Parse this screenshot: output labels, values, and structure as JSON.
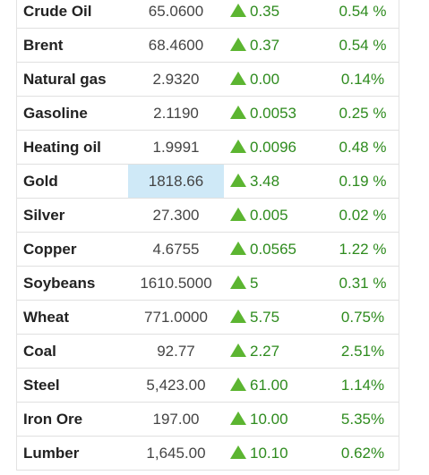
{
  "commodities": [
    {
      "name": "Crude Oil",
      "price": "65.0600",
      "change": "0.35",
      "percent": "0.54 %"
    },
    {
      "name": "Brent",
      "price": "68.4600",
      "change": "0.37",
      "percent": "0.54 %"
    },
    {
      "name": "Natural gas",
      "price": "2.9320",
      "change": "0.00",
      "percent": "0.14%"
    },
    {
      "name": "Gasoline",
      "price": "2.1190",
      "change": "0.0053",
      "percent": "0.25 %"
    },
    {
      "name": "Heating oil",
      "price": "1.9991",
      "change": "0.0096",
      "percent": "0.48 %"
    },
    {
      "name": "Gold",
      "price": "1818.66",
      "change": "3.48",
      "percent": "0.19 %",
      "highlighted": true
    },
    {
      "name": "Silver",
      "price": "27.300",
      "change": "0.005",
      "percent": "0.02 %"
    },
    {
      "name": "Copper",
      "price": "4.6755",
      "change": "0.0565",
      "percent": "1.22 %"
    },
    {
      "name": "Soybeans",
      "price": "1610.5000",
      "change": "5",
      "percent": "0.31 %"
    },
    {
      "name": "Wheat",
      "price": "771.0000",
      "change": "5.75",
      "percent": "0.75%"
    },
    {
      "name": "Coal",
      "price": "92.77",
      "change": "2.27",
      "percent": "2.51%"
    },
    {
      "name": "Steel",
      "price": "5,423.00",
      "change": "61.00",
      "percent": "1.14%"
    },
    {
      "name": "Iron Ore",
      "price": "197.00",
      "change": "10.00",
      "percent": "5.35%"
    },
    {
      "name": "Lumber",
      "price": "1,645.00",
      "change": "10.10",
      "percent": "0.62%"
    }
  ],
  "colors": {
    "up": "#2e8b1e",
    "up_icon": "#5cb531",
    "highlight": "#cfe9f7"
  },
  "icons": {
    "change_direction": "up-triangle-icon"
  }
}
